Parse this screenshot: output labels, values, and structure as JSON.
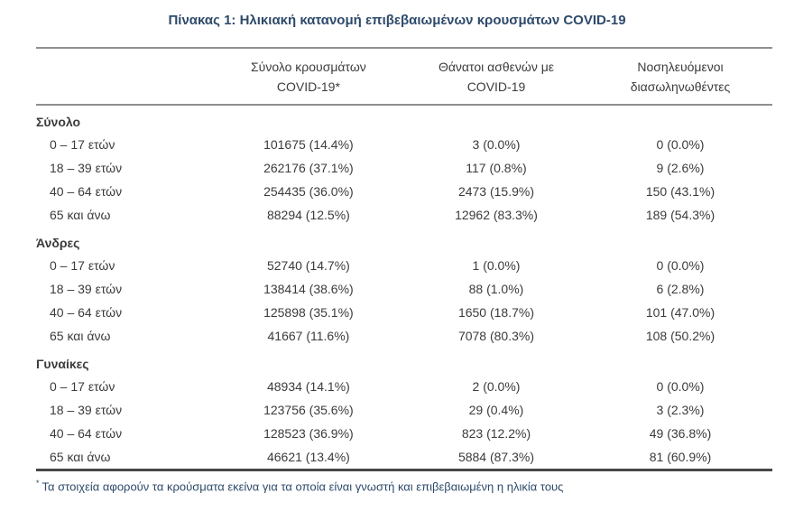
{
  "title": "Πίνακας 1: Ηλικιακή κατανομή επιβεβαιωμένων κρουσμάτων COVID-19",
  "colors": {
    "title_text": "#2e4a6b",
    "body_text": "#3b3b3b",
    "rule_light": "#8f8f8f",
    "rule_dark": "#474747"
  },
  "table": {
    "header": {
      "col_cases_line1": "Σύνολο κρουσμάτων",
      "col_cases_line2": "COVID-19*",
      "col_deaths_line1": "Θάνατοι ασθενών με",
      "col_deaths_line2": "COVID-19",
      "col_intubated_line1": "Νοσηλευόμενοι",
      "col_intubated_line2": "διασωληνωθέντες"
    },
    "sections": [
      {
        "label": "Σύνολο",
        "rows": [
          {
            "age": "0 – 17 ετών",
            "cases": "101675 (14.4%)",
            "deaths": "3 (0.0%)",
            "intubated": "0 (0.0%)"
          },
          {
            "age": "18 – 39 ετών",
            "cases": "262176 (37.1%)",
            "deaths": "117 (0.8%)",
            "intubated": "9 (2.6%)"
          },
          {
            "age": "40 – 64 ετών",
            "cases": "254435 (36.0%)",
            "deaths": "2473 (15.9%)",
            "intubated": "150 (43.1%)"
          },
          {
            "age": "65 και άνω",
            "cases": "88294 (12.5%)",
            "deaths": "12962 (83.3%)",
            "intubated": "189 (54.3%)"
          }
        ]
      },
      {
        "label": "Άνδρες",
        "rows": [
          {
            "age": "0 – 17 ετών",
            "cases": "52740 (14.7%)",
            "deaths": "1 (0.0%)",
            "intubated": "0 (0.0%)"
          },
          {
            "age": "18 – 39 ετών",
            "cases": "138414 (38.6%)",
            "deaths": "88 (1.0%)",
            "intubated": "6 (2.8%)"
          },
          {
            "age": "40 – 64 ετών",
            "cases": "125898 (35.1%)",
            "deaths": "1650 (18.7%)",
            "intubated": "101 (47.0%)"
          },
          {
            "age": "65 και άνω",
            "cases": "41667 (11.6%)",
            "deaths": "7078 (80.3%)",
            "intubated": "108 (50.2%)"
          }
        ]
      },
      {
        "label": "Γυναίκες",
        "rows": [
          {
            "age": "0 – 17 ετών",
            "cases": "48934 (14.1%)",
            "deaths": "2 (0.0%)",
            "intubated": "0 (0.0%)"
          },
          {
            "age": "18 – 39 ετών",
            "cases": "123756 (35.6%)",
            "deaths": "29 (0.4%)",
            "intubated": "3 (2.3%)"
          },
          {
            "age": "40 – 64 ετών",
            "cases": "128523 (36.9%)",
            "deaths": "823 (12.2%)",
            "intubated": "49 (36.8%)"
          },
          {
            "age": "65 και άνω",
            "cases": "46621 (13.4%)",
            "deaths": "5884 (87.3%)",
            "intubated": "81 (60.9%)"
          }
        ]
      }
    ]
  },
  "footnote": {
    "marker": "*",
    "text": "Τα στοιχεία αφορούν τα κρούσματα εκείνα για τα οποία είναι γνωστή και επιβεβαιωμένη η ηλικία τους"
  }
}
